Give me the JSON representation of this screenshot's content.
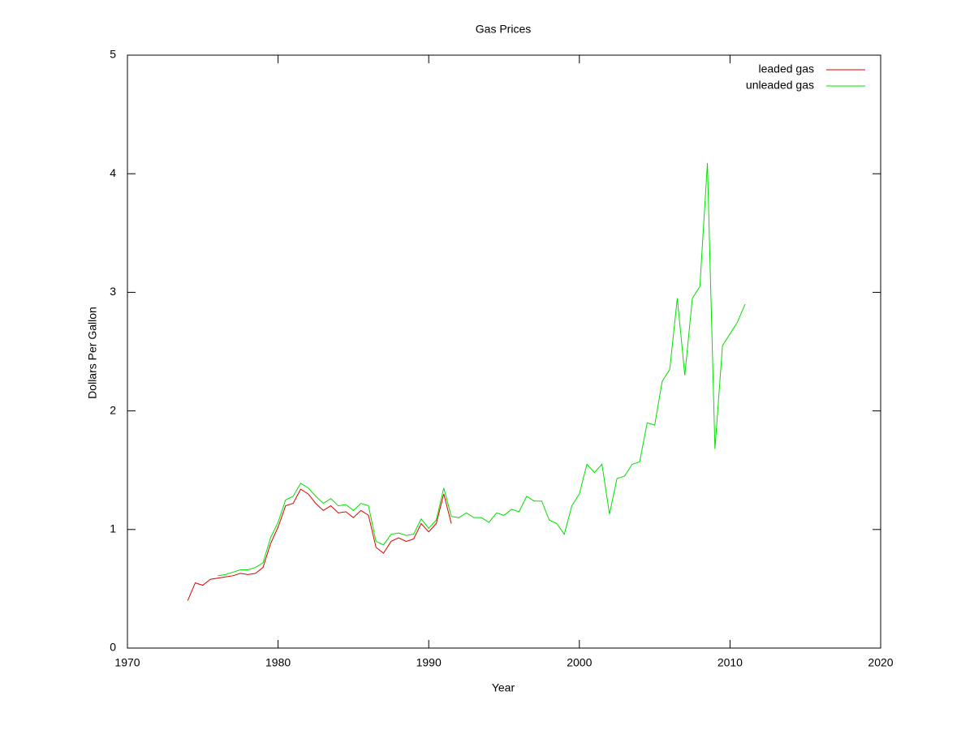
{
  "chart_data": {
    "type": "line",
    "title": "Gas Prices",
    "x_label": "Year",
    "y_label": "Dollars Per Gallon",
    "x": [
      1974.0,
      1974.5,
      1975.0,
      1975.5,
      1976.0,
      1976.5,
      1977.0,
      1977.5,
      1978.0,
      1978.5,
      1979.0,
      1979.5,
      1980.0,
      1980.5,
      1981.0,
      1981.5,
      1982.0,
      1982.5,
      1983.0,
      1983.5,
      1984.0,
      1984.5,
      1985.0,
      1985.5,
      1986.0,
      1986.5,
      1987.0,
      1987.5,
      1988.0,
      1988.5,
      1989.0,
      1989.5,
      1990.0,
      1990.5,
      1991.0,
      1991.5,
      1992.0,
      1992.5,
      1993.0,
      1993.5,
      1994.0,
      1994.5,
      1995.0,
      1995.5,
      1996.0,
      1996.5,
      1997.0,
      1997.5,
      1998.0,
      1998.5,
      1999.0,
      1999.5,
      2000.0,
      2000.5,
      2001.0,
      2001.5,
      2002.0,
      2002.5,
      2003.0,
      2003.5,
      2004.0,
      2004.5,
      2005.0,
      2005.5,
      2006.0,
      2006.5,
      2007.0,
      2007.5,
      2008.0,
      2008.5,
      2009.0,
      2009.5,
      2010.0,
      2010.5,
      2011.0
    ],
    "series": [
      {
        "name": "leaded gas",
        "color": "#e00000",
        "values": [
          0.4,
          0.55,
          0.53,
          0.58,
          0.59,
          0.6,
          0.61,
          0.63,
          0.62,
          0.63,
          0.68,
          0.88,
          1.02,
          1.2,
          1.22,
          1.34,
          1.3,
          1.22,
          1.16,
          1.2,
          1.14,
          1.15,
          1.1,
          1.16,
          1.12,
          0.85,
          0.8,
          0.9,
          0.93,
          0.9,
          0.92,
          1.05,
          0.98,
          1.05,
          1.3,
          1.05,
          null,
          null,
          null,
          null,
          null,
          null,
          null,
          null,
          null,
          null,
          null,
          null,
          null,
          null,
          null,
          null,
          null,
          null,
          null,
          null,
          null,
          null,
          null,
          null,
          null,
          null,
          null,
          null,
          null,
          null,
          null,
          null,
          null,
          null,
          null,
          null,
          null,
          null,
          null
        ]
      },
      {
        "name": "unleaded gas",
        "color": "#00e000",
        "values": [
          null,
          null,
          null,
          null,
          0.61,
          0.62,
          0.64,
          0.66,
          0.66,
          0.68,
          0.72,
          0.93,
          1.06,
          1.25,
          1.28,
          1.39,
          1.35,
          1.28,
          1.22,
          1.26,
          1.2,
          1.21,
          1.16,
          1.22,
          1.2,
          0.9,
          0.87,
          0.96,
          0.97,
          0.95,
          0.96,
          1.09,
          1.01,
          1.08,
          1.35,
          1.11,
          1.1,
          1.14,
          1.1,
          1.1,
          1.06,
          1.14,
          1.12,
          1.17,
          1.15,
          1.28,
          1.24,
          1.24,
          1.08,
          1.05,
          0.96,
          1.2,
          1.3,
          1.55,
          1.48,
          1.55,
          1.13,
          1.43,
          1.45,
          1.55,
          1.57,
          1.9,
          1.88,
          2.25,
          2.35,
          2.95,
          2.3,
          2.95,
          3.05,
          4.09,
          1.68,
          2.55,
          2.65,
          2.75,
          2.9
        ]
      }
    ],
    "xlim": [
      1970,
      2020
    ],
    "xticks": [
      1970,
      1980,
      1990,
      2000,
      2010,
      2020
    ],
    "ylim": [
      0,
      5
    ],
    "yticks": [
      0,
      1,
      2,
      3,
      4,
      5
    ],
    "grid": false,
    "legend": "top-right"
  }
}
